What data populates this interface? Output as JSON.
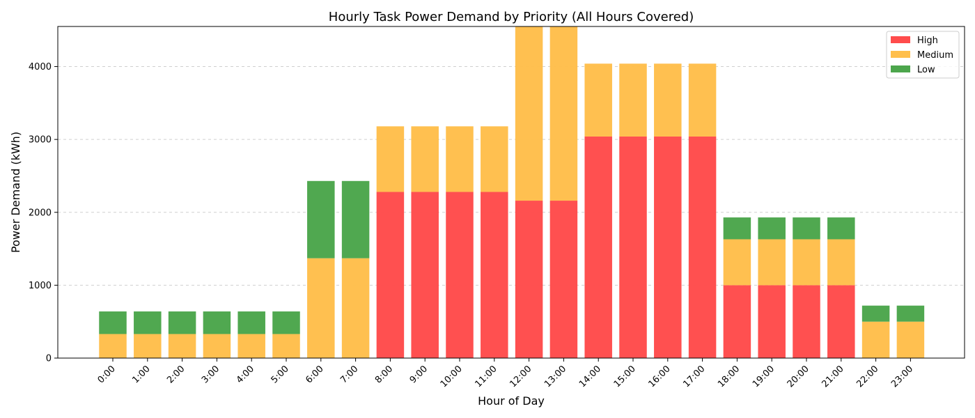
{
  "chart_data": {
    "type": "bar",
    "stacked": true,
    "title": "Hourly Task Power Demand by Priority (All Hours Covered)",
    "xlabel": "Hour of Day",
    "ylabel": "Power Demand (kWh)",
    "ylim": [
      0,
      4550
    ],
    "yticks": [
      0,
      1000,
      2000,
      3000,
      4000
    ],
    "grid": "y-dashed",
    "legend_position": "top-right",
    "categories": [
      "0:00",
      "1:00",
      "2:00",
      "3:00",
      "4:00",
      "5:00",
      "6:00",
      "7:00",
      "8:00",
      "9:00",
      "10:00",
      "11:00",
      "12:00",
      "13:00",
      "14:00",
      "15:00",
      "16:00",
      "17:00",
      "18:00",
      "19:00",
      "20:00",
      "21:00",
      "22:00",
      "23:00"
    ],
    "series": [
      {
        "name": "High",
        "color": "#ff4c4c",
        "values": [
          0,
          0,
          0,
          0,
          0,
          0,
          0,
          0,
          2280,
          2280,
          2280,
          2280,
          2160,
          2160,
          3040,
          3040,
          3040,
          3040,
          1000,
          1000,
          1000,
          1000,
          0,
          0
        ]
      },
      {
        "name": "Medium",
        "color": "#ffbf4c",
        "values": [
          330,
          330,
          330,
          330,
          330,
          330,
          1370,
          1370,
          900,
          900,
          900,
          900,
          2400,
          2400,
          1000,
          1000,
          1000,
          1000,
          630,
          630,
          630,
          630,
          500,
          500
        ]
      },
      {
        "name": "Low",
        "color": "#4ca64c",
        "values": [
          310,
          310,
          310,
          310,
          310,
          310,
          1060,
          1060,
          0,
          0,
          0,
          0,
          0,
          0,
          0,
          0,
          0,
          0,
          300,
          300,
          300,
          300,
          220,
          220
        ]
      }
    ]
  }
}
